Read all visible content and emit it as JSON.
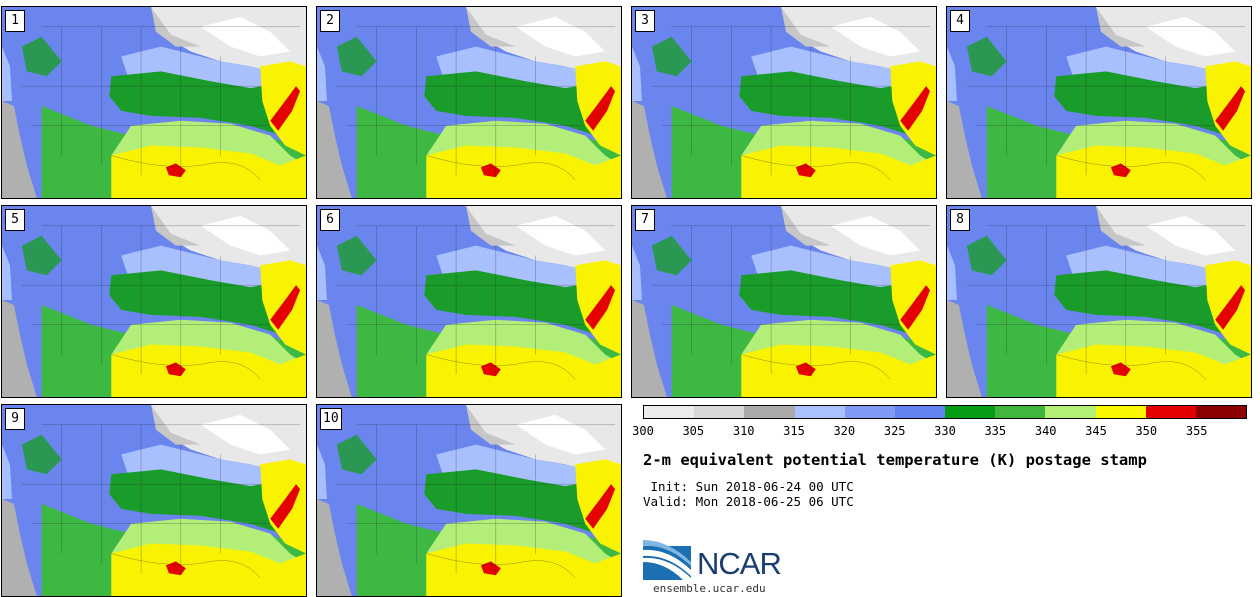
{
  "panels": [
    {
      "label": "1"
    },
    {
      "label": "2"
    },
    {
      "label": "3"
    },
    {
      "label": "4"
    },
    {
      "label": "5"
    },
    {
      "label": "6"
    },
    {
      "label": "7"
    },
    {
      "label": "8"
    },
    {
      "label": "9"
    },
    {
      "label": "10"
    }
  ],
  "colorbar": {
    "colors": [
      "#ececec",
      "#d7d7d7",
      "#a9a9a9",
      "#aac1ff",
      "#7f99f7",
      "#6282ef",
      "#079c16",
      "#40b63f",
      "#b2ef76",
      "#fbf700",
      "#e50000",
      "#8c0000"
    ],
    "ticks": [
      "300",
      "305",
      "310",
      "315",
      "320",
      "325",
      "330",
      "335",
      "340",
      "345",
      "350",
      "355"
    ]
  },
  "title": "2-m equivalent potential temperature (K) postage stamp",
  "init": " Init: Sun 2018-06-24 00 UTC",
  "valid": "Valid: Mon 2018-06-25 06 UTC",
  "logo": {
    "text": "NCAR",
    "url": "ensemble.ucar.edu"
  }
}
